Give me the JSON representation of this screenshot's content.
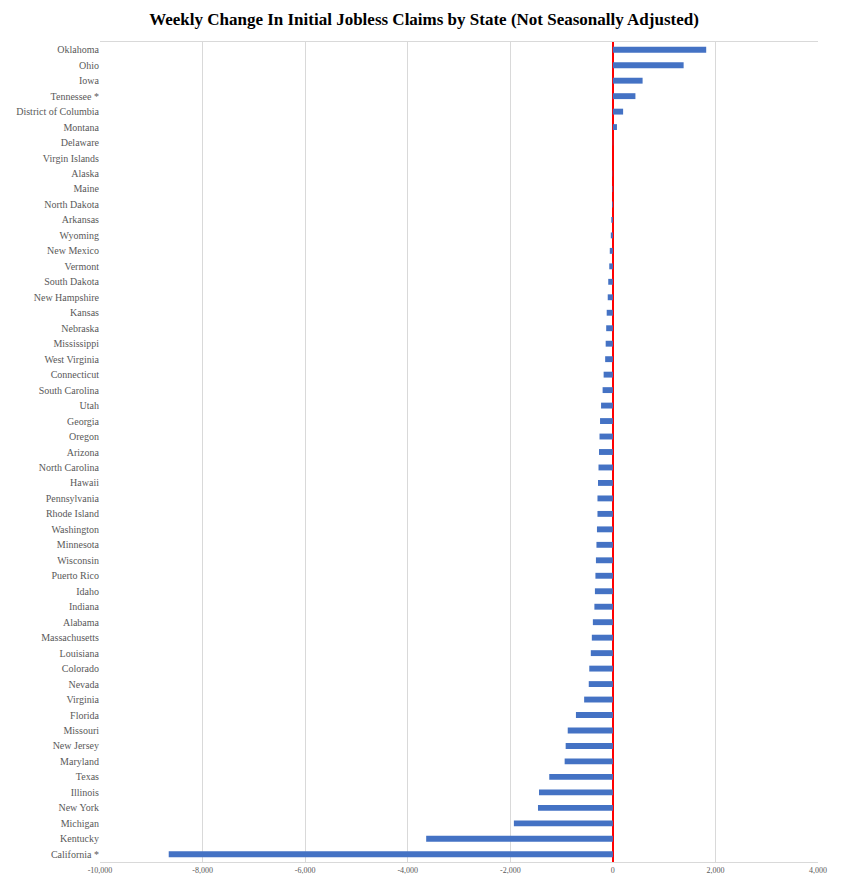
{
  "chart_data": {
    "type": "bar",
    "orientation": "horizontal",
    "title": "Weekly Change In Initial Jobless Claims by State (Not Seasonally Adjusted)",
    "categories": [
      "Oklahoma",
      "Ohio",
      "Iowa",
      "Tennessee *",
      "District of Columbia",
      "Montana",
      "Delaware",
      "Virgin Islands",
      "Alaska",
      "Maine",
      "North Dakota",
      "Arkansas",
      "Wyoming",
      "New Mexico",
      "Vermont",
      "South Dakota",
      "New Hampshire",
      "Kansas",
      "Nebraska",
      "Mississippi",
      "West Virginia",
      "Connecticut",
      "South Carolina",
      "Utah",
      "Georgia",
      "Oregon",
      "Arizona",
      "North Carolina",
      "Hawaii",
      "Pennsylvania",
      "Rhode Island",
      "Washington",
      "Minnesota",
      "Wisconsin",
      "Puerto Rico",
      "Idaho",
      "Indiana",
      "Alabama",
      "Massachusetts",
      "Louisiana",
      "Colorado",
      "Nevada",
      "Virginia",
      "Florida",
      "Missouri",
      "New Jersey",
      "Maryland",
      "Texas",
      "Illinois",
      "New York",
      "Michigan",
      "Kentucky",
      "California *"
    ],
    "values": [
      1820,
      1380,
      580,
      440,
      200,
      80,
      5,
      0,
      -5,
      -10,
      -15,
      -30,
      -40,
      -60,
      -70,
      -90,
      -100,
      -120,
      -130,
      -140,
      -150,
      -180,
      -200,
      -230,
      -250,
      -260,
      -270,
      -280,
      -290,
      -300,
      -300,
      -310,
      -320,
      -330,
      -340,
      -350,
      -360,
      -390,
      -410,
      -430,
      -460,
      -470,
      -560,
      -720,
      -880,
      -920,
      -940,
      -1240,
      -1440,
      -1460,
      -1930,
      -3640,
      -8660
    ],
    "color": "#4472c4",
    "xlim": [
      -10000,
      4000
    ],
    "xticks": [
      {
        "value": -10000,
        "label": "-10,000"
      },
      {
        "value": -8000,
        "label": "-8,000"
      },
      {
        "value": -6000,
        "label": "-6,000"
      },
      {
        "value": -4000,
        "label": "-4,000"
      },
      {
        "value": -2000,
        "label": "-2,000"
      },
      0,
      {
        "value": 2000,
        "label": "2,000"
      },
      {
        "value": 4000,
        "label": "4,000"
      }
    ],
    "grid": true
  }
}
